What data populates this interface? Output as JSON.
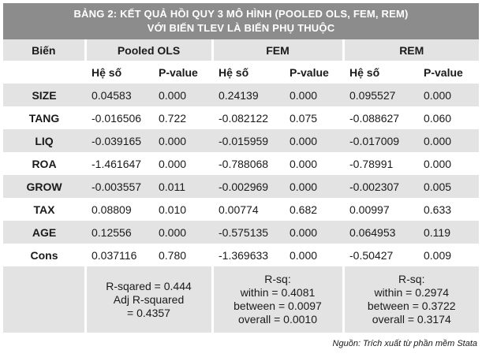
{
  "title": {
    "line1": "BẢNG 2: KẾT QUẢ HỒI QUY 3 MÔ HÌNH (POOLED OLS, FEM, REM)",
    "line2": "VỚI BIẾN TLEV LÀ BIẾN PHỤ THUỘC"
  },
  "header": {
    "variable": "Biến",
    "groups": [
      "Pooled OLS",
      "FEM",
      "REM"
    ],
    "coef": "Hệ số",
    "pvalue": "P-value"
  },
  "rows": [
    {
      "name": "SIZE",
      "values": [
        "0.04583",
        "0.000",
        "0.24139",
        "0.000",
        "0.095527",
        "0.000"
      ]
    },
    {
      "name": "TANG",
      "values": [
        "-0.016506",
        "0.722",
        "-0.082122",
        "0.075",
        "-0.088627",
        "0.060"
      ]
    },
    {
      "name": "LIQ",
      "values": [
        "-0.039165",
        "0.000",
        "-0.015959",
        "0.000",
        "-0.017009",
        "0.000"
      ]
    },
    {
      "name": "ROA",
      "values": [
        "-1.461647",
        "0.000",
        "-0.788068",
        "0.000",
        "-0.78991",
        "0.000"
      ]
    },
    {
      "name": "GROW",
      "values": [
        "-0.003557",
        "0.011",
        "-0.002969",
        "0.000",
        "-0.002307",
        "0.005"
      ]
    },
    {
      "name": "TAX",
      "values": [
        "0.08809",
        "0.010",
        "0.00774",
        "0.682",
        "0.00997",
        "0.633"
      ]
    },
    {
      "name": "AGE",
      "values": [
        "0.12556",
        "0.000",
        "-0.575135",
        "0.000",
        "0.064953",
        "0.119"
      ]
    },
    {
      "name": "Cons",
      "values": [
        "0.037116",
        "0.780",
        "-1.369633",
        "0.000",
        "-0.50427",
        "0.009"
      ]
    }
  ],
  "stats": {
    "pooled": [
      "R-sqared = 0.444",
      "Adj R-squared",
      "= 0.4357"
    ],
    "fem": [
      "R-sq:",
      "within = 0.4081",
      "between = 0.0097",
      "overall = 0.0010"
    ],
    "rem": [
      "R-sq:",
      "within =  0.2974",
      "between = 0.3722",
      "overall = 0.3174"
    ]
  },
  "source": "Nguồn: Trích xuất từ phần mềm Stata"
}
